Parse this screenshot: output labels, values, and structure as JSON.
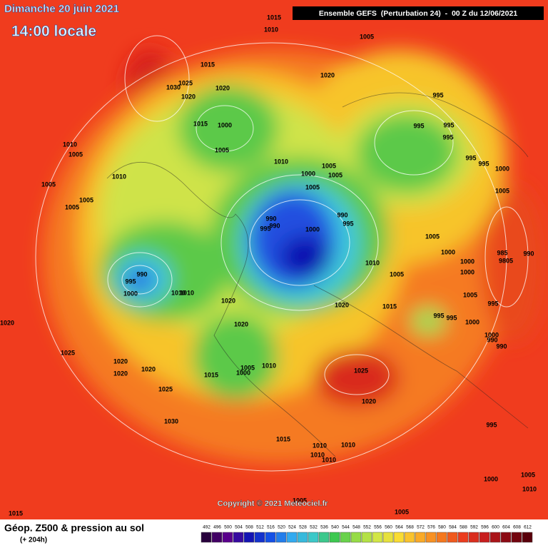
{
  "header": {
    "date": "Dimanche 20 juin 2021",
    "time": "14:00 locale",
    "model": "Ensemble GEFS  (Perturbation 24)  -  00 Z du 12/06/2021"
  },
  "copyright": "Copyright © 2021 Meteociel.fr",
  "footer": {
    "title": "Géop. Z500 & pression au sol",
    "lead": "(+ 204h)"
  },
  "scale": [
    492,
    496,
    500,
    504,
    508,
    512,
    516,
    520,
    524,
    528,
    532,
    536,
    540,
    544,
    548,
    552,
    556,
    560,
    564,
    568,
    572,
    576,
    580,
    584,
    588,
    592,
    596,
    600,
    604,
    608,
    612
  ],
  "pressure_labels": [
    1015,
    1010,
    1005,
    1015,
    1020,
    1025,
    1030,
    1020,
    1020,
    995,
    1015,
    1000,
    995,
    995,
    995,
    1005,
    1010,
    1005,
    1010,
    995,
    995,
    1000,
    1005,
    1000,
    1005,
    1010,
    1005,
    1005,
    1005,
    1005,
    1005,
    990,
    990,
    995,
    990,
    995,
    1000,
    1005,
    985,
    990,
    9805,
    1000,
    1000,
    1010,
    1005,
    1000,
    990,
    995,
    1000,
    1010,
    1010,
    1005,
    1020,
    1020,
    1015,
    995,
    995,
    995,
    1000,
    1020,
    1020,
    1000,
    990,
    990,
    1025,
    1020,
    1005,
    1010,
    1000,
    1020,
    1020,
    1015,
    1025,
    1025,
    1020,
    1030,
    995,
    1015,
    1010,
    1010,
    1010,
    1010,
    1005,
    1000,
    1010,
    1005,
    1015,
    1005
  ]
}
